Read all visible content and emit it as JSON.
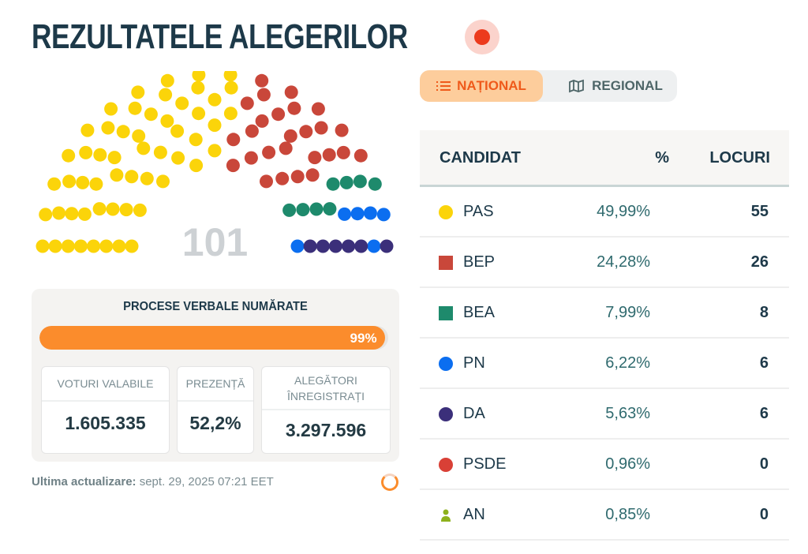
{
  "header": {
    "title": "REZULTATELE ALEGERILOR",
    "live_icon": "live-dot-icon"
  },
  "parliament": {
    "total_seats": "101",
    "parties": [
      {
        "name": "PAS",
        "seats": 55,
        "color": "#fbd40a"
      },
      {
        "name": "BEP",
        "seats": 26,
        "color": "#c9473a"
      },
      {
        "name": "BEA",
        "seats": 8,
        "color": "#1e8a6c"
      },
      {
        "name": "PN",
        "seats": 6,
        "color": "#0b6ef0"
      },
      {
        "name": "DA",
        "seats": 6,
        "color": "#3b2f7a"
      }
    ]
  },
  "progress": {
    "title": "PROCESE VERBALE NUMĂRATE",
    "percent": 99,
    "label": "99%",
    "color": "#fb8c2c"
  },
  "stats": [
    {
      "label": "VOTURI VALABILE",
      "value": "1.605.335"
    },
    {
      "label": "PREZENȚĂ",
      "value": "52,2%"
    },
    {
      "label": "ALEGĂTORI ÎNREGISTRAȚI",
      "value": "3.297.596"
    }
  ],
  "update": {
    "label": "Ultima actualizare:",
    "value": "sept. 29, 2025 07:21 EET"
  },
  "tabs": [
    {
      "label": "NAȚIONAL",
      "icon": "list-icon",
      "active": true
    },
    {
      "label": "REGIONAL",
      "icon": "map-icon",
      "active": false
    }
  ],
  "table": {
    "headers": {
      "candidate": "CANDIDAT",
      "percent": "%",
      "seats": "LOCURI"
    },
    "rows": [
      {
        "name": "PAS",
        "percent": "49,99%",
        "seats": "55",
        "shape": "circle",
        "color": "#fbd40a"
      },
      {
        "name": "BEP",
        "percent": "24,28%",
        "seats": "26",
        "shape": "square",
        "color": "#c9473a"
      },
      {
        "name": "BEA",
        "percent": "7,99%",
        "seats": "8",
        "shape": "square",
        "color": "#1e8a6c"
      },
      {
        "name": "PN",
        "percent": "6,22%",
        "seats": "6",
        "shape": "circle",
        "color": "#0b6ef0"
      },
      {
        "name": "DA",
        "percent": "5,63%",
        "seats": "6",
        "shape": "circle",
        "color": "#3b2f7a"
      },
      {
        "name": "PSDE",
        "percent": "0,96%",
        "seats": "0",
        "shape": "circle",
        "color": "#d94036"
      },
      {
        "name": "AN",
        "percent": "0,85%",
        "seats": "0",
        "shape": "person",
        "color": "#8db11c"
      }
    ]
  }
}
